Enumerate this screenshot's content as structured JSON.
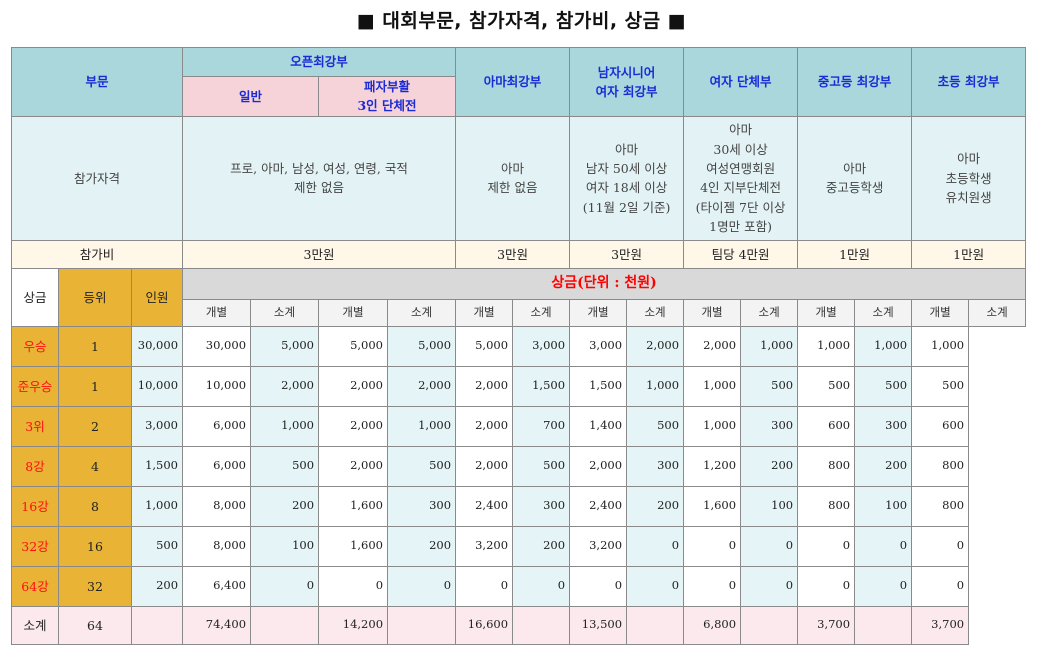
{
  "title": "■ 대회부문, 참가자격, 참가비, 상금 ■",
  "header": {
    "division_label": "부문",
    "open": "오픈최강부",
    "open_general": "일반",
    "open_team_1": "패자부활",
    "open_team_2": "3인 단체전",
    "amateur": "아마최강부",
    "senior_1": "남자시니어",
    "senior_2": "여자 최강부",
    "women_team": "여자 단체부",
    "middle_high": "중고등 최강부",
    "elementary": "초등 최강부"
  },
  "eligibility": {
    "label": "참가자격",
    "open_1": "프로, 아마, 남성, 여성, 연령, 국적",
    "open_2": "제한 없음",
    "amateur_1": "아마",
    "amateur_2": "제한 없음",
    "senior_1": "아마",
    "senior_2": "남자 50세 이상",
    "senior_3": "여자 18세 이상",
    "senior_4": "(11월 2일 기준)",
    "women_1": "아마",
    "women_2": "30세 이상",
    "women_3": "여성연맹회원",
    "women_4": "4인 지부단체전",
    "women_5": "(타이젬 7단 이상",
    "women_6": "1명만 포함)",
    "mh_1": "아마",
    "mh_2": "중고등학생",
    "el_1": "아마",
    "el_2": "초등학생",
    "el_3": "유치원생"
  },
  "fee": {
    "label": "참가비",
    "open": "3만원",
    "amateur": "3만원",
    "senior": "3만원",
    "women": "팀당 4만원",
    "mh": "1만원",
    "el": "1만원"
  },
  "prize": {
    "side_label": "상금",
    "rank_label": "등위",
    "count_label": "인원",
    "title": "상금(단위 : 천원)",
    "each": "개별",
    "sub": "소계",
    "rows": [
      {
        "rank": "우승",
        "count": "1",
        "v": [
          "30,000",
          "30,000",
          "5,000",
          "5,000",
          "5,000",
          "5,000",
          "3,000",
          "3,000",
          "2,000",
          "2,000",
          "1,000",
          "1,000",
          "1,000",
          "1,000"
        ]
      },
      {
        "rank": "준우승",
        "count": "1",
        "v": [
          "10,000",
          "10,000",
          "2,000",
          "2,000",
          "2,000",
          "2,000",
          "1,500",
          "1,500",
          "1,000",
          "1,000",
          "500",
          "500",
          "500",
          "500"
        ]
      },
      {
        "rank": "3위",
        "count": "2",
        "v": [
          "3,000",
          "6,000",
          "1,000",
          "2,000",
          "1,000",
          "2,000",
          "700",
          "1,400",
          "500",
          "1,000",
          "300",
          "600",
          "300",
          "600"
        ]
      },
      {
        "rank": "8강",
        "count": "4",
        "v": [
          "1,500",
          "6,000",
          "500",
          "2,000",
          "500",
          "2,000",
          "500",
          "2,000",
          "300",
          "1,200",
          "200",
          "800",
          "200",
          "800"
        ]
      },
      {
        "rank": "16강",
        "count": "8",
        "v": [
          "1,000",
          "8,000",
          "200",
          "1,600",
          "300",
          "2,400",
          "300",
          "2,400",
          "200",
          "1,600",
          "100",
          "800",
          "100",
          "800"
        ]
      },
      {
        "rank": "32강",
        "count": "16",
        "v": [
          "500",
          "8,000",
          "100",
          "1,600",
          "200",
          "3,200",
          "200",
          "3,200",
          "0",
          "0",
          "0",
          "0",
          "0",
          "0"
        ]
      },
      {
        "rank": "64강",
        "count": "32",
        "v": [
          "200",
          "6,400",
          "0",
          "0",
          "0",
          "0",
          "0",
          "0",
          "0",
          "0",
          "0",
          "0",
          "0",
          "0"
        ]
      }
    ],
    "total": {
      "rank": "소계",
      "count": "64",
      "v": [
        "",
        "74,400",
        "",
        "14,200",
        "",
        "16,600",
        "",
        "13,500",
        "",
        "6,800",
        "",
        "3,700",
        "",
        "3,700"
      ]
    }
  }
}
